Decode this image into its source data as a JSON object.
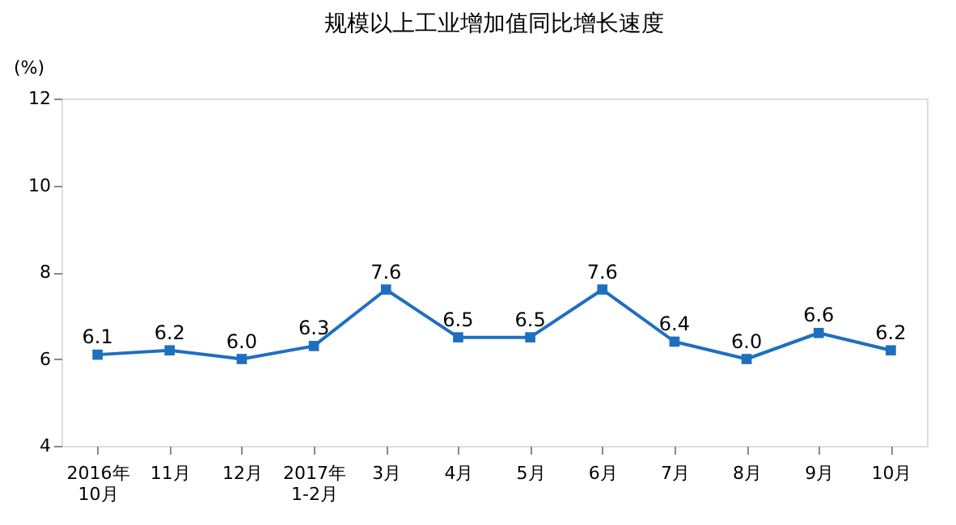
{
  "chart_data": {
    "type": "line",
    "title": "规模以上工业增加值同比增长速度",
    "ylabel": "(%)",
    "categories": [
      "2016年\n10月",
      "11月",
      "12月",
      "2017年\n1-2月",
      "3月",
      "4月",
      "5月",
      "6月",
      "7月",
      "8月",
      "9月",
      "10月"
    ],
    "series": [
      {
        "color": "#1f6fbf",
        "values": [
          6.1,
          6.2,
          6.0,
          6.3,
          7.6,
          6.5,
          6.5,
          7.6,
          6.4,
          6.0,
          6.6,
          6.2
        ],
        "value_labels": [
          "6.1",
          "6.2",
          "6.0",
          "6.3",
          "7.6",
          "6.5",
          "6.5",
          "7.6",
          "6.4",
          "6.0",
          "6.6",
          "6.2"
        ]
      }
    ],
    "ylim": [
      4,
      12
    ],
    "yticks": [
      4,
      6,
      8,
      10,
      12
    ],
    "marker": "square",
    "line_style": "solid",
    "grid": false,
    "legend": false
  }
}
